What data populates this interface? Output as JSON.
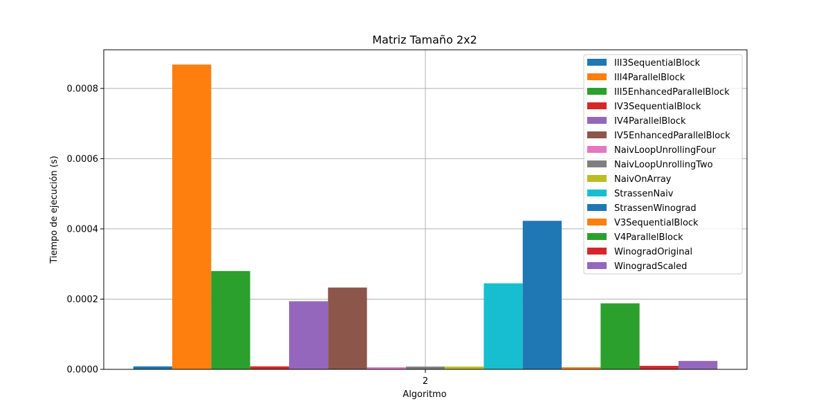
{
  "chart_data": {
    "type": "bar",
    "title": "Matriz Tamaño 2x2",
    "xlabel": "Algoritmo",
    "ylabel": "Tiempo de ejecución (s)",
    "categories": [
      "2"
    ],
    "ylim": [
      0,
      0.00091
    ],
    "yticks": [
      "0.0000",
      "0.0002",
      "0.0004",
      "0.0006",
      "0.0008"
    ],
    "ytick_values": [
      0,
      0.0002,
      0.0004,
      0.0006,
      0.0008
    ],
    "grid": true,
    "legend_position": "top-right",
    "series": [
      {
        "name": "III3SequentialBlock",
        "color": "#1f77b4",
        "values": [
          8.5e-06
        ]
      },
      {
        "name": "III4ParallelBlock",
        "color": "#ff7f0e",
        "values": [
          0.000868
        ]
      },
      {
        "name": "III5EnhancedParallelBlock",
        "color": "#2ca02c",
        "values": [
          0.00028
        ]
      },
      {
        "name": "IV3SequentialBlock",
        "color": "#d62728",
        "values": [
          8.5e-06
        ]
      },
      {
        "name": "IV4ParallelBlock",
        "color": "#9467bd",
        "values": [
          0.000194
        ]
      },
      {
        "name": "IV5EnhancedParallelBlock",
        "color": "#8c564b",
        "values": [
          0.000233
        ]
      },
      {
        "name": "NaivLoopUnrollingFour",
        "color": "#e377c2",
        "values": [
          6e-06
        ]
      },
      {
        "name": "NaivLoopUnrollingTwo",
        "color": "#7f7f7f",
        "values": [
          8e-06
        ]
      },
      {
        "name": "NaivOnArray",
        "color": "#bcbd22",
        "values": [
          8e-06
        ]
      },
      {
        "name": "StrassenNaiv",
        "color": "#17becf",
        "values": [
          0.000245
        ]
      },
      {
        "name": "StrassenWinograd",
        "color": "#1f77b4",
        "values": [
          0.000423
        ]
      },
      {
        "name": "V3SequentialBlock",
        "color": "#ff7f0e",
        "values": [
          6e-06
        ]
      },
      {
        "name": "V4ParallelBlock",
        "color": "#2ca02c",
        "values": [
          0.000188
        ]
      },
      {
        "name": "WinogradOriginal",
        "color": "#d62728",
        "values": [
          1e-05
        ]
      },
      {
        "name": "WinogradScaled",
        "color": "#9467bd",
        "values": [
          2.4e-05
        ]
      }
    ]
  }
}
